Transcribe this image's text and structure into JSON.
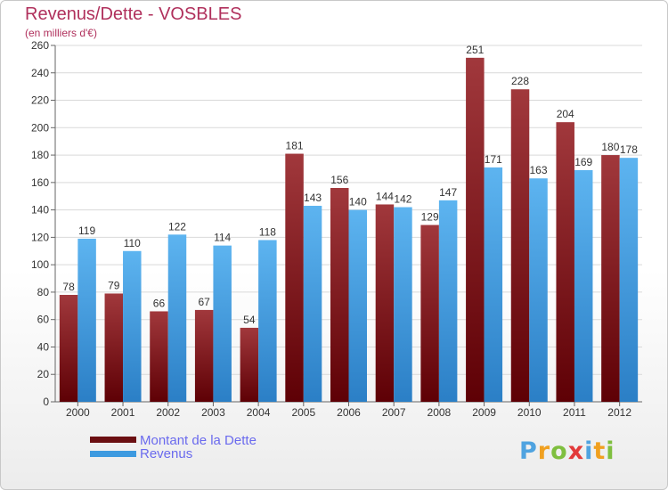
{
  "header": {
    "title": "Revenus/Dette - VOSBLES",
    "subtitle": "(en milliers d'€)"
  },
  "legend": [
    {
      "label": "Montant de la Dette",
      "color": "#6b0f12"
    },
    {
      "label": "Revenus",
      "color": "#3d9ae0"
    }
  ],
  "logo": {
    "text": "Proxiti",
    "letters": [
      "P",
      "r",
      "o",
      "x",
      "i",
      "t",
      "i"
    ]
  },
  "chart_data": {
    "type": "bar",
    "title": "Revenus/Dette - VOSBLES",
    "subtitle": "(en milliers d'€)",
    "categories": [
      "2000",
      "2001",
      "2002",
      "2003",
      "2004",
      "2005",
      "2006",
      "2007",
      "2008",
      "2009",
      "2010",
      "2011",
      "2012"
    ],
    "series": [
      {
        "name": "Montant de la Dette",
        "color": "#6b0f12",
        "values": [
          78,
          79,
          66,
          67,
          54,
          181,
          156,
          144,
          129,
          251,
          228,
          204,
          180
        ]
      },
      {
        "name": "Revenus",
        "color": "#3d9ae0",
        "values": [
          119,
          110,
          122,
          114,
          118,
          143,
          140,
          142,
          147,
          171,
          163,
          169,
          178
        ]
      }
    ],
    "ylim": [
      0,
      260
    ],
    "yticks": [
      0,
      20,
      40,
      60,
      80,
      100,
      120,
      140,
      160,
      180,
      200,
      220,
      240,
      260
    ],
    "grid": true,
    "legend_position": "bottom-left"
  }
}
